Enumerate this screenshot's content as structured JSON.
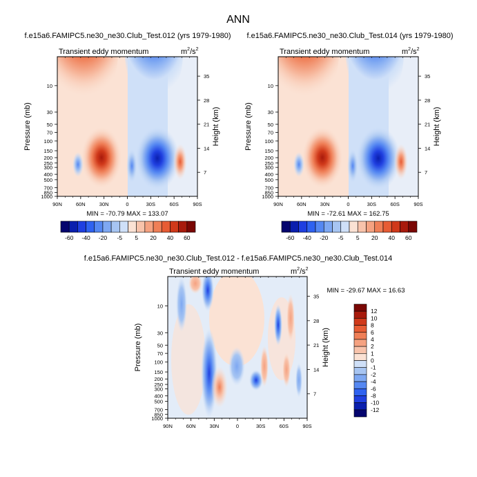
{
  "page": {
    "title": "ANN"
  },
  "panels": [
    {
      "id": "top-left",
      "run_title": "f.e15a6.FAMIPC5.ne30_ne30.Club_Test.012 (yrs 1979-1980)",
      "variable": "Transient eddy momentum",
      "units_base": "m",
      "units_sup1": "2",
      "units_mid": "/s",
      "units_sup2": "2",
      "ylabel": "Pressure (mb)",
      "ylabel_right": "Height (km)",
      "stats": "MIN = -70.79  MAX = 133.07"
    },
    {
      "id": "top-right",
      "run_title": "f.e15a6.FAMIPC5.ne30_ne30.Club_Test.014 (yrs 1979-1980)",
      "variable": "Transient eddy momentum",
      "units_base": "m",
      "units_sup1": "2",
      "units_mid": "/s",
      "units_sup2": "2",
      "ylabel": "Pressure (mb)",
      "ylabel_right": "Height (km)",
      "stats": "MIN = -72.61  MAX = 162.75"
    },
    {
      "id": "bottom",
      "run_title": "f.e15a6.FAMIPC5.ne30_ne30.Club_Test.012 - f.e15a6.FAMIPC5.ne30_ne30.Club_Test.014",
      "variable": "Transient eddy momentum",
      "units_base": "m",
      "units_sup1": "2",
      "units_mid": "/s",
      "units_sup2": "2",
      "ylabel": "Pressure (mb)",
      "ylabel_right": "Height (km)",
      "stats": "MIN = -29.67  MAX =  16.63"
    }
  ],
  "chart_data": {
    "type": "heatmap",
    "x_tick_labels": [
      "90N",
      "60N",
      "30N",
      "0",
      "30S",
      "60S",
      "90S"
    ],
    "x_ticks": [
      90,
      60,
      30,
      0,
      -30,
      -60,
      -90
    ],
    "xlim": [
      90,
      -90
    ],
    "y_scale": "log",
    "y_ticks": [
      10,
      30,
      50,
      70,
      100,
      150,
      200,
      250,
      300,
      400,
      500,
      700,
      850,
      1000
    ],
    "y_tick_labels": [
      "10",
      "30",
      "50",
      "70",
      "100",
      "150",
      "200",
      "250",
      "300",
      "400",
      "500",
      "700",
      "850",
      "1000"
    ],
    "ylim": [
      1000,
      3
    ],
    "height_ticks_km": [
      35,
      28,
      21,
      14,
      7
    ],
    "height_tick_labels": [
      "35",
      "28",
      "21",
      "14",
      "7"
    ],
    "colorbar_top": {
      "labels": [
        "-60",
        "-40",
        "-20",
        "-5",
        "5",
        "20",
        "40",
        "60"
      ],
      "colors": [
        "#05056e",
        "#0a1fae",
        "#1f3fe0",
        "#2f62f0",
        "#5588f2",
        "#7ea8f2",
        "#a7c5f2",
        "#cfe0f8",
        "#fbe2d4",
        "#f8c3ab",
        "#f5a281",
        "#ef7f57",
        "#e75c34",
        "#d0391a",
        "#a81a0c",
        "#7a0704"
      ]
    },
    "colorbar_bottom": {
      "labels": [
        "12",
        "10",
        "8",
        "6",
        "4",
        "2",
        "1",
        "0",
        "-1",
        "-2",
        "-4",
        "-6",
        "-8",
        "-10",
        "-12"
      ],
      "colors": [
        "#7a0704",
        "#a81a0c",
        "#d0391a",
        "#e75c34",
        "#ef7f57",
        "#f5a281",
        "#f8c3ab",
        "#fbe2d4",
        "#cfe0f8",
        "#a7c5f2",
        "#7ea8f2",
        "#5588f2",
        "#2f62f0",
        "#1f3fe0",
        "#0a1fae",
        "#05056e"
      ]
    }
  }
}
